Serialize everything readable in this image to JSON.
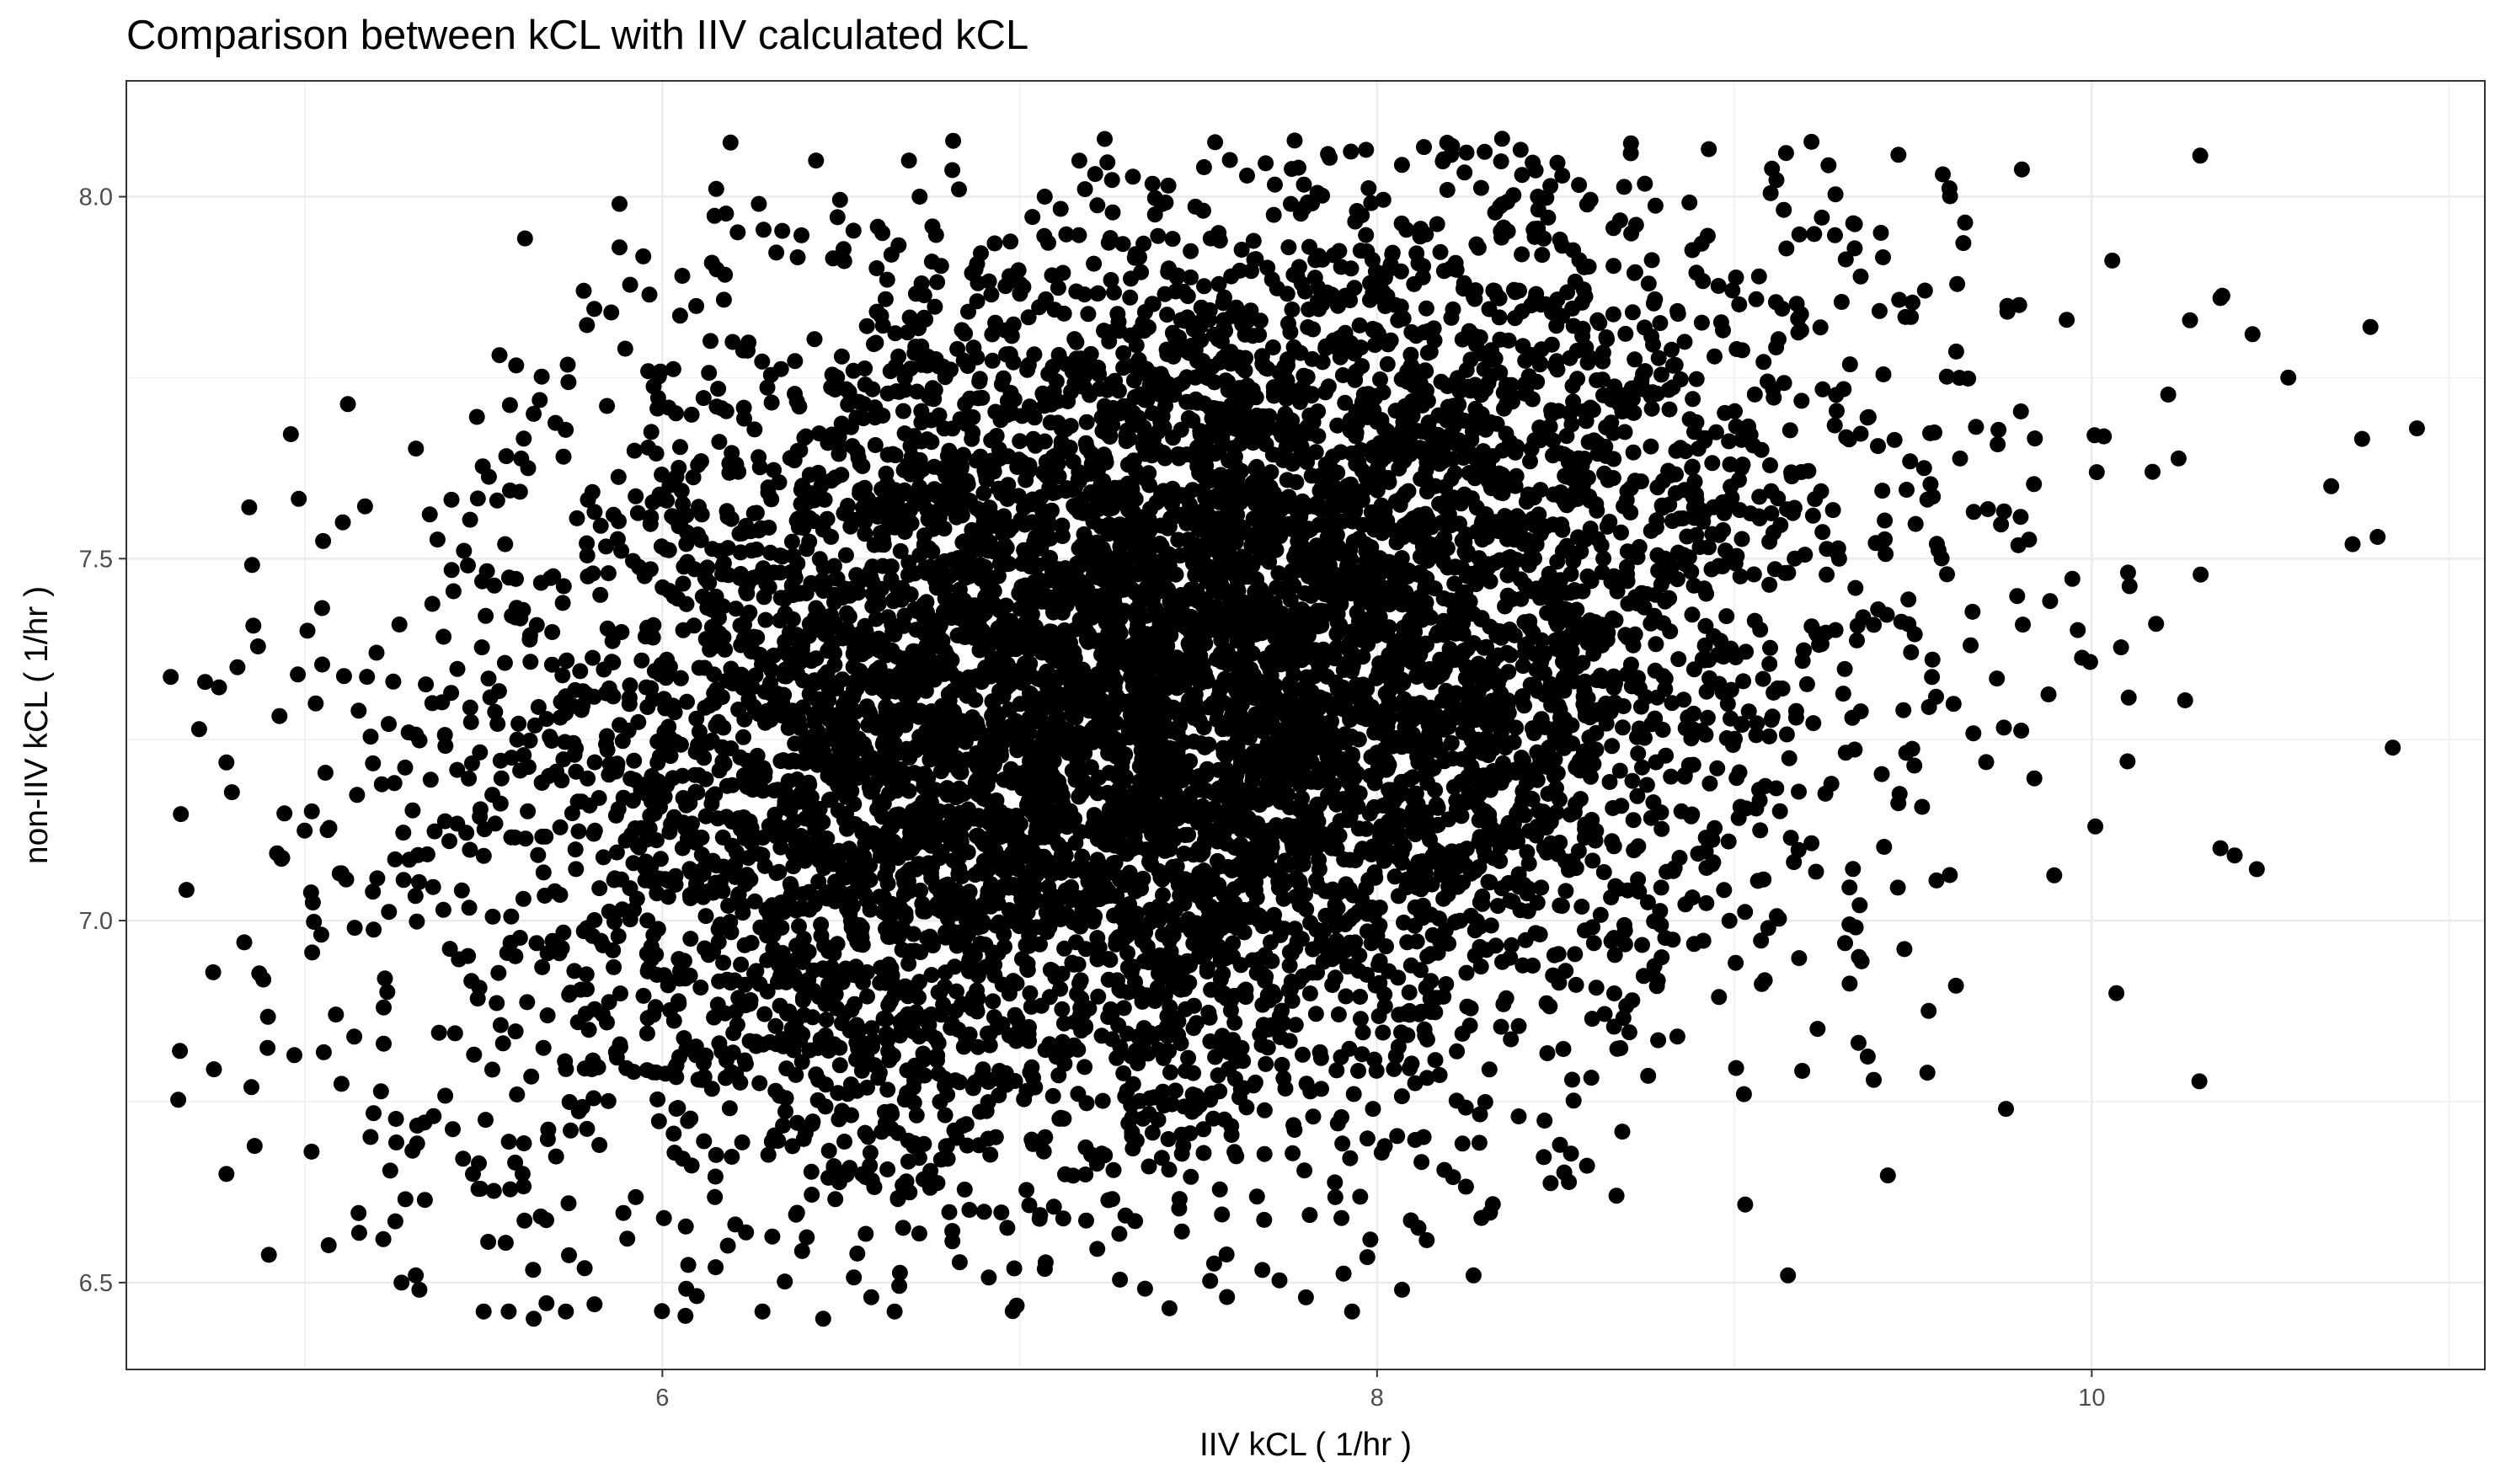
{
  "chart_data": {
    "type": "scatter",
    "title": "Comparison between kCL with IIV calculated kCL",
    "xlabel": "IIV kCL ( 1/hr )",
    "ylabel": "non-IIV kCL ( 1/hr )",
    "xlim": [
      4.5,
      11.1
    ],
    "ylim": [
      6.38,
      8.16
    ],
    "xticks": [
      6,
      8,
      10
    ],
    "xtick_labels": [
      "6",
      "8",
      "10"
    ],
    "yticks": [
      6.5,
      7.0,
      7.5,
      8.0
    ],
    "ytick_labels": [
      "6.5",
      "7.0",
      "7.5",
      "8.0"
    ],
    "x_minor_gridlines": [
      5,
      7,
      9,
      11
    ],
    "y_minor_gridlines": [
      6.75,
      7.25,
      7.75
    ],
    "grid": true,
    "legend": "none",
    "point_color": "#000000",
    "distribution": {
      "n_points": 8000,
      "x_mean": 7.37,
      "x_sd": 0.93,
      "y_mean": 7.32,
      "y_sd": 0.33,
      "correlation": 0.28,
      "y_min": 6.45,
      "y_max": 8.08
    },
    "points_sample": [
      [
        4.65,
        6.82
      ],
      [
        4.78,
        6.65
      ],
      [
        4.83,
        6.97
      ],
      [
        4.85,
        6.77
      ],
      [
        4.98,
        7.34
      ],
      [
        5.03,
        7.3
      ],
      [
        5.19,
        7.04
      ],
      [
        5.22,
        6.83
      ],
      [
        5.2,
        7.37
      ],
      [
        5.25,
        7.19
      ],
      [
        5.29,
        7.26
      ],
      [
        5.27,
        6.5
      ],
      [
        5.32,
        6.49
      ],
      [
        5.31,
        6.51
      ],
      [
        5.15,
        7.29
      ],
      [
        5.36,
        6.73
      ],
      [
        5.47,
        6.65
      ],
      [
        5.56,
        7.52
      ],
      [
        5.64,
        7.7
      ],
      [
        5.78,
        7.87
      ],
      [
        5.88,
        7.93
      ],
      [
        5.88,
        7.99
      ],
      [
        6.27,
        7.99
      ],
      [
        6.43,
        8.05
      ],
      [
        6.69,
        8.05
      ],
      [
        6.72,
        8.0
      ],
      [
        6.83,
        8.01
      ],
      [
        7.07,
        8.0
      ],
      [
        7.78,
        8.04
      ],
      [
        8.21,
        8.07
      ],
      [
        8.35,
        8.08
      ],
      [
        8.71,
        8.06
      ],
      [
        8.45,
        8.0
      ],
      [
        9.41,
        7.95
      ],
      [
        9.93,
        7.83
      ],
      [
        10.17,
        7.62
      ],
      [
        10.36,
        7.86
      ],
      [
        10.45,
        7.81
      ],
      [
        10.55,
        7.75
      ],
      [
        10.67,
        7.6
      ],
      [
        10.73,
        7.52
      ],
      [
        10.78,
        7.82
      ],
      [
        10.8,
        7.53
      ],
      [
        10.91,
        7.68
      ],
      [
        10.18,
        7.41
      ],
      [
        10.1,
        7.22
      ],
      [
        10.36,
        7.1
      ],
      [
        10.4,
        7.09
      ],
      [
        10.01,
        7.13
      ],
      [
        9.76,
        6.74
      ],
      [
        9.62,
        6.91
      ],
      [
        9.15,
        6.51
      ],
      [
        9.54,
        6.79
      ],
      [
        9.39,
        6.78
      ],
      [
        8.67,
        6.62
      ],
      [
        8.27,
        6.51
      ],
      [
        8.07,
        6.49
      ],
      [
        7.93,
        6.46
      ],
      [
        7.58,
        6.48
      ],
      [
        6.65,
        6.46
      ],
      [
        6.45,
        6.45
      ],
      [
        6.28,
        6.46
      ],
      [
        5.81,
        6.47
      ],
      [
        5.73,
        6.46
      ],
      [
        5.64,
        6.45
      ],
      [
        5.57,
        6.46
      ],
      [
        5.5,
        6.46
      ]
    ]
  }
}
